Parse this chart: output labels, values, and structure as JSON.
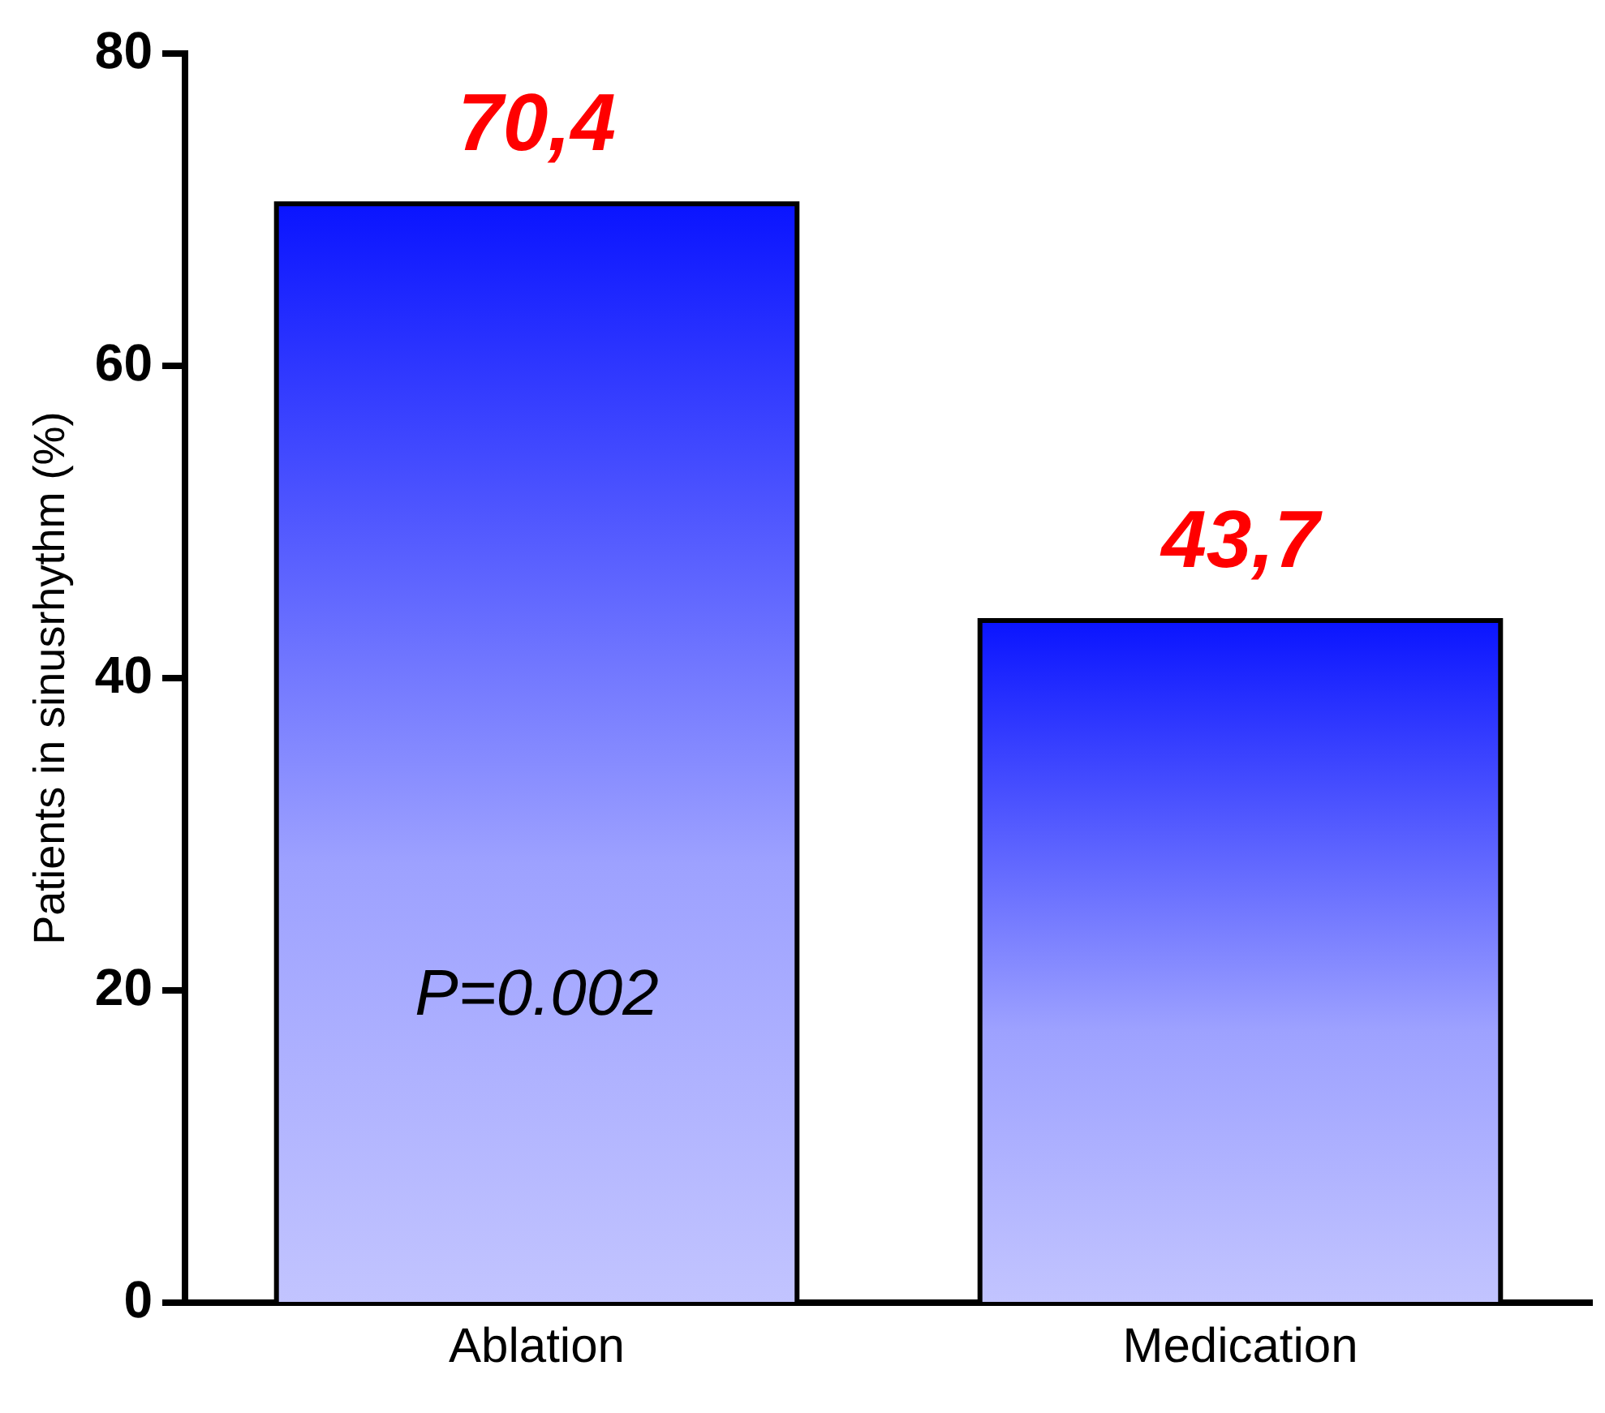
{
  "chart_data": {
    "type": "bar",
    "ylabel": "Patients in sinusrhythm (%)",
    "categories": [
      "Ablation",
      "Medication"
    ],
    "values": [
      70.4,
      43.7
    ],
    "value_labels": [
      "70,4",
      "43,7"
    ],
    "color": "#0a14ff",
    "ylim": [
      0,
      80
    ],
    "yticks": [
      0,
      20,
      40,
      60,
      80
    ],
    "grid": false,
    "legend": false,
    "annotations": [
      "P=0.002"
    ]
  }
}
